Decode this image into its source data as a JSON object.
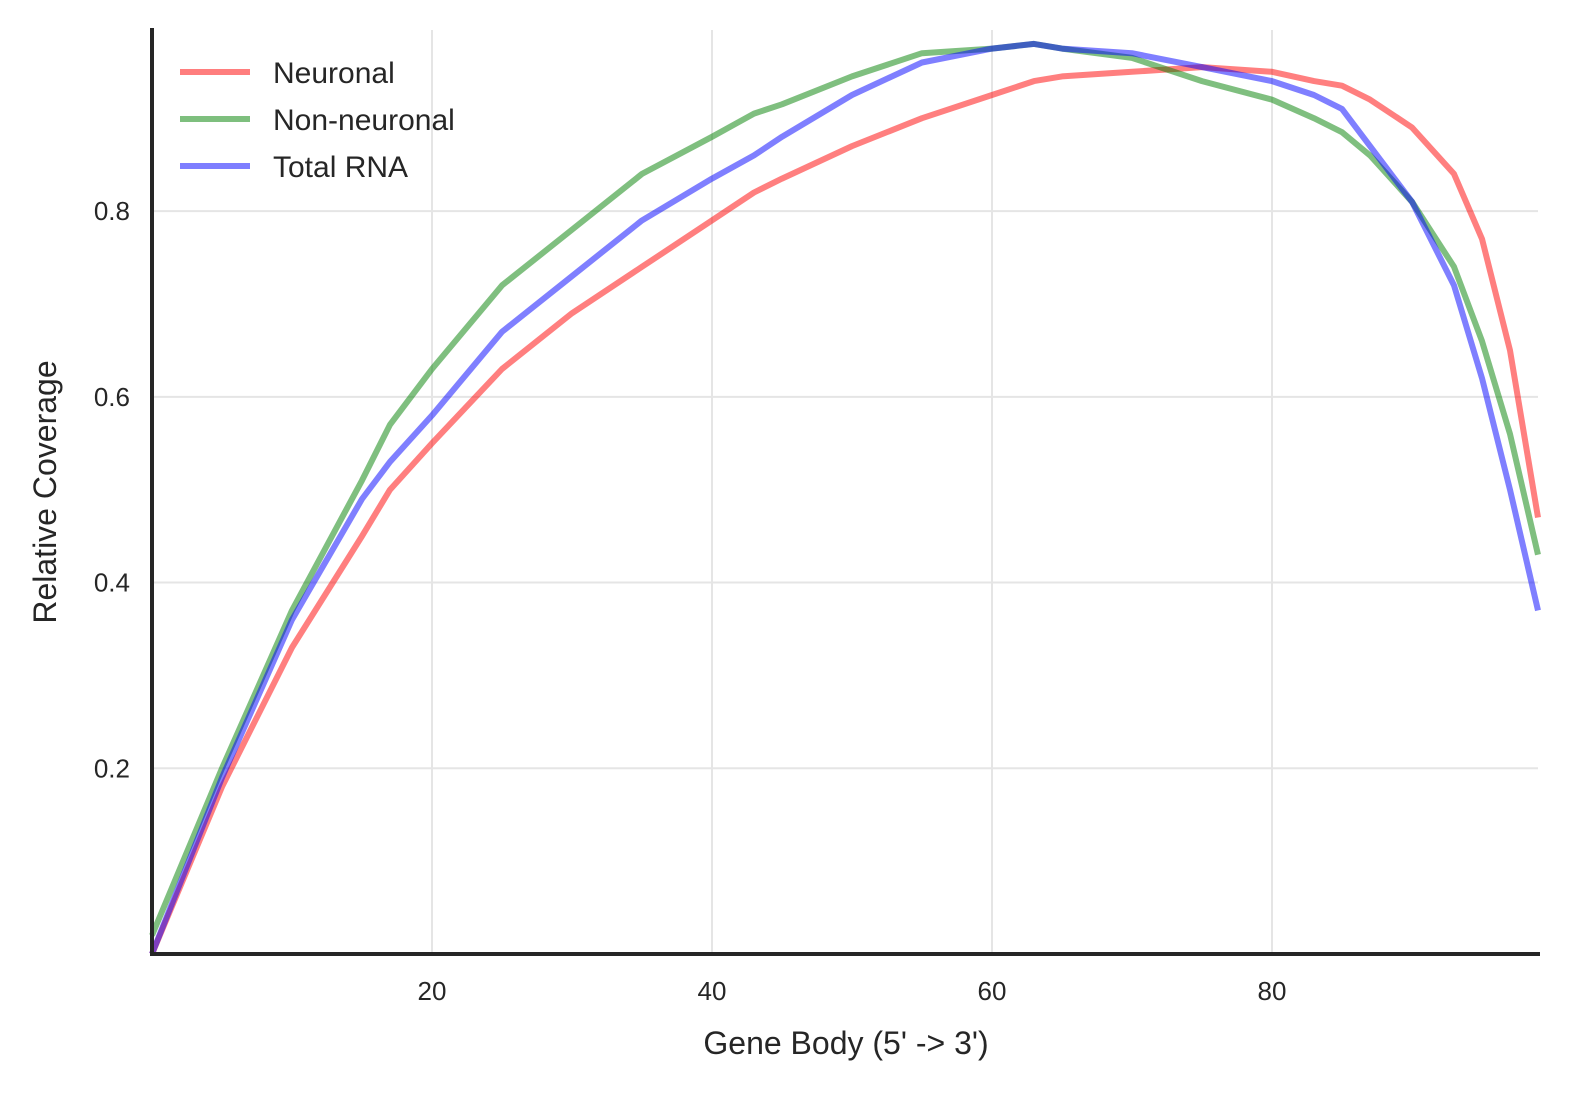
{
  "chart_data": {
    "type": "line",
    "title": "",
    "xlabel": "Gene Body (5' -> 3')",
    "ylabel": "Relative Coverage",
    "xlim": [
      0,
      99
    ],
    "ylim": [
      0.0,
      0.995
    ],
    "xticks": [
      20,
      40,
      60,
      80
    ],
    "xtick_labels": [
      "20",
      "40",
      "60",
      "80"
    ],
    "yticks": [
      0.2,
      0.4,
      0.6,
      0.8
    ],
    "ytick_labels": [
      "0.2",
      "0.4",
      "0.6",
      "0.8"
    ],
    "grid": true,
    "legend_position": "top-left",
    "x": [
      0,
      5,
      10,
      15,
      17,
      20,
      25,
      30,
      35,
      40,
      43,
      45,
      50,
      55,
      60,
      63,
      65,
      70,
      75,
      80,
      83,
      85,
      87,
      90,
      93,
      95,
      97,
      99
    ],
    "series": [
      {
        "name": "Neuronal",
        "color": "#ff0000",
        "values": [
          0.0,
          0.18,
          0.33,
          0.45,
          0.5,
          0.55,
          0.63,
          0.69,
          0.74,
          0.79,
          0.82,
          0.835,
          0.87,
          0.9,
          0.925,
          0.94,
          0.945,
          0.95,
          0.955,
          0.95,
          0.94,
          0.935,
          0.92,
          0.89,
          0.84,
          0.77,
          0.65,
          0.47
        ]
      },
      {
        "name": "Non-neuronal",
        "color": "#008000",
        "values": [
          0.02,
          0.2,
          0.37,
          0.51,
          0.57,
          0.63,
          0.72,
          0.78,
          0.84,
          0.88,
          0.905,
          0.915,
          0.945,
          0.97,
          0.975,
          0.98,
          0.975,
          0.965,
          0.94,
          0.92,
          0.9,
          0.885,
          0.86,
          0.81,
          0.74,
          0.66,
          0.56,
          0.43
        ]
      },
      {
        "name": "Total RNA",
        "color": "#0000ff",
        "values": [
          0.0,
          0.19,
          0.36,
          0.49,
          0.53,
          0.58,
          0.67,
          0.73,
          0.79,
          0.835,
          0.86,
          0.88,
          0.925,
          0.96,
          0.975,
          0.98,
          0.975,
          0.97,
          0.955,
          0.94,
          0.925,
          0.91,
          0.87,
          0.81,
          0.72,
          0.62,
          0.5,
          0.37
        ]
      }
    ]
  }
}
